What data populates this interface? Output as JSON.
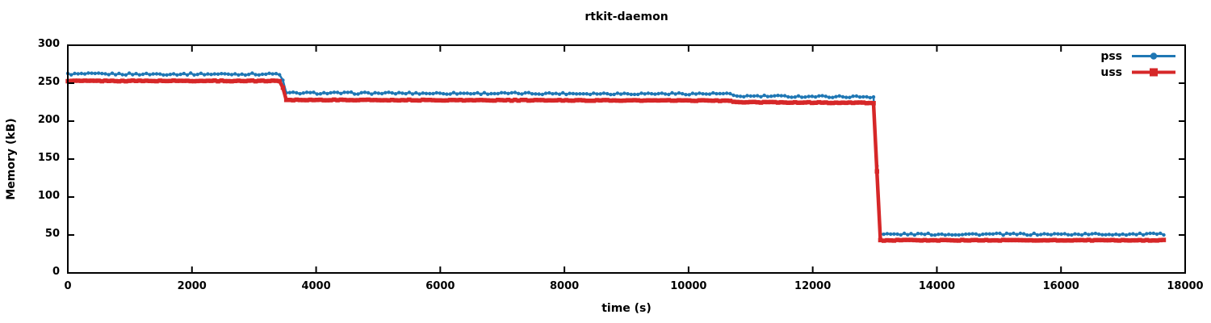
{
  "chart_data": {
    "type": "line",
    "title": "rtkit-daemon",
    "xlabel": "time (s)",
    "ylabel": "Memory (kB)",
    "xlim": [
      0,
      18000
    ],
    "ylim": [
      0,
      300
    ],
    "xticks": [
      0,
      2000,
      4000,
      6000,
      8000,
      10000,
      12000,
      14000,
      16000,
      18000
    ],
    "yticks": [
      0,
      50,
      100,
      150,
      200,
      250,
      300
    ],
    "grid": false,
    "legend_position": "top-right-inside",
    "sample_interval_s": 55,
    "axis_color": "#000000",
    "background_color": "#ffffff",
    "series": [
      {
        "name": "pss",
        "color": "#1f77b4",
        "marker": "circle",
        "noise_kB": 1.3,
        "steps": [
          [
            0,
            262
          ],
          [
            3440,
            262
          ],
          [
            3510,
            237
          ],
          [
            10650,
            236
          ],
          [
            10710,
            233
          ],
          [
            13000,
            232
          ],
          [
            13070,
            51
          ],
          [
            17680,
            51
          ]
        ]
      },
      {
        "name": "uss",
        "color": "#d62728",
        "marker": "square",
        "noise_kB": 0.5,
        "steps": [
          [
            0,
            253
          ],
          [
            3440,
            253
          ],
          [
            3510,
            228
          ],
          [
            10650,
            227
          ],
          [
            10710,
            225
          ],
          [
            13000,
            224
          ],
          [
            13070,
            43
          ],
          [
            17680,
            43
          ]
        ]
      }
    ]
  }
}
